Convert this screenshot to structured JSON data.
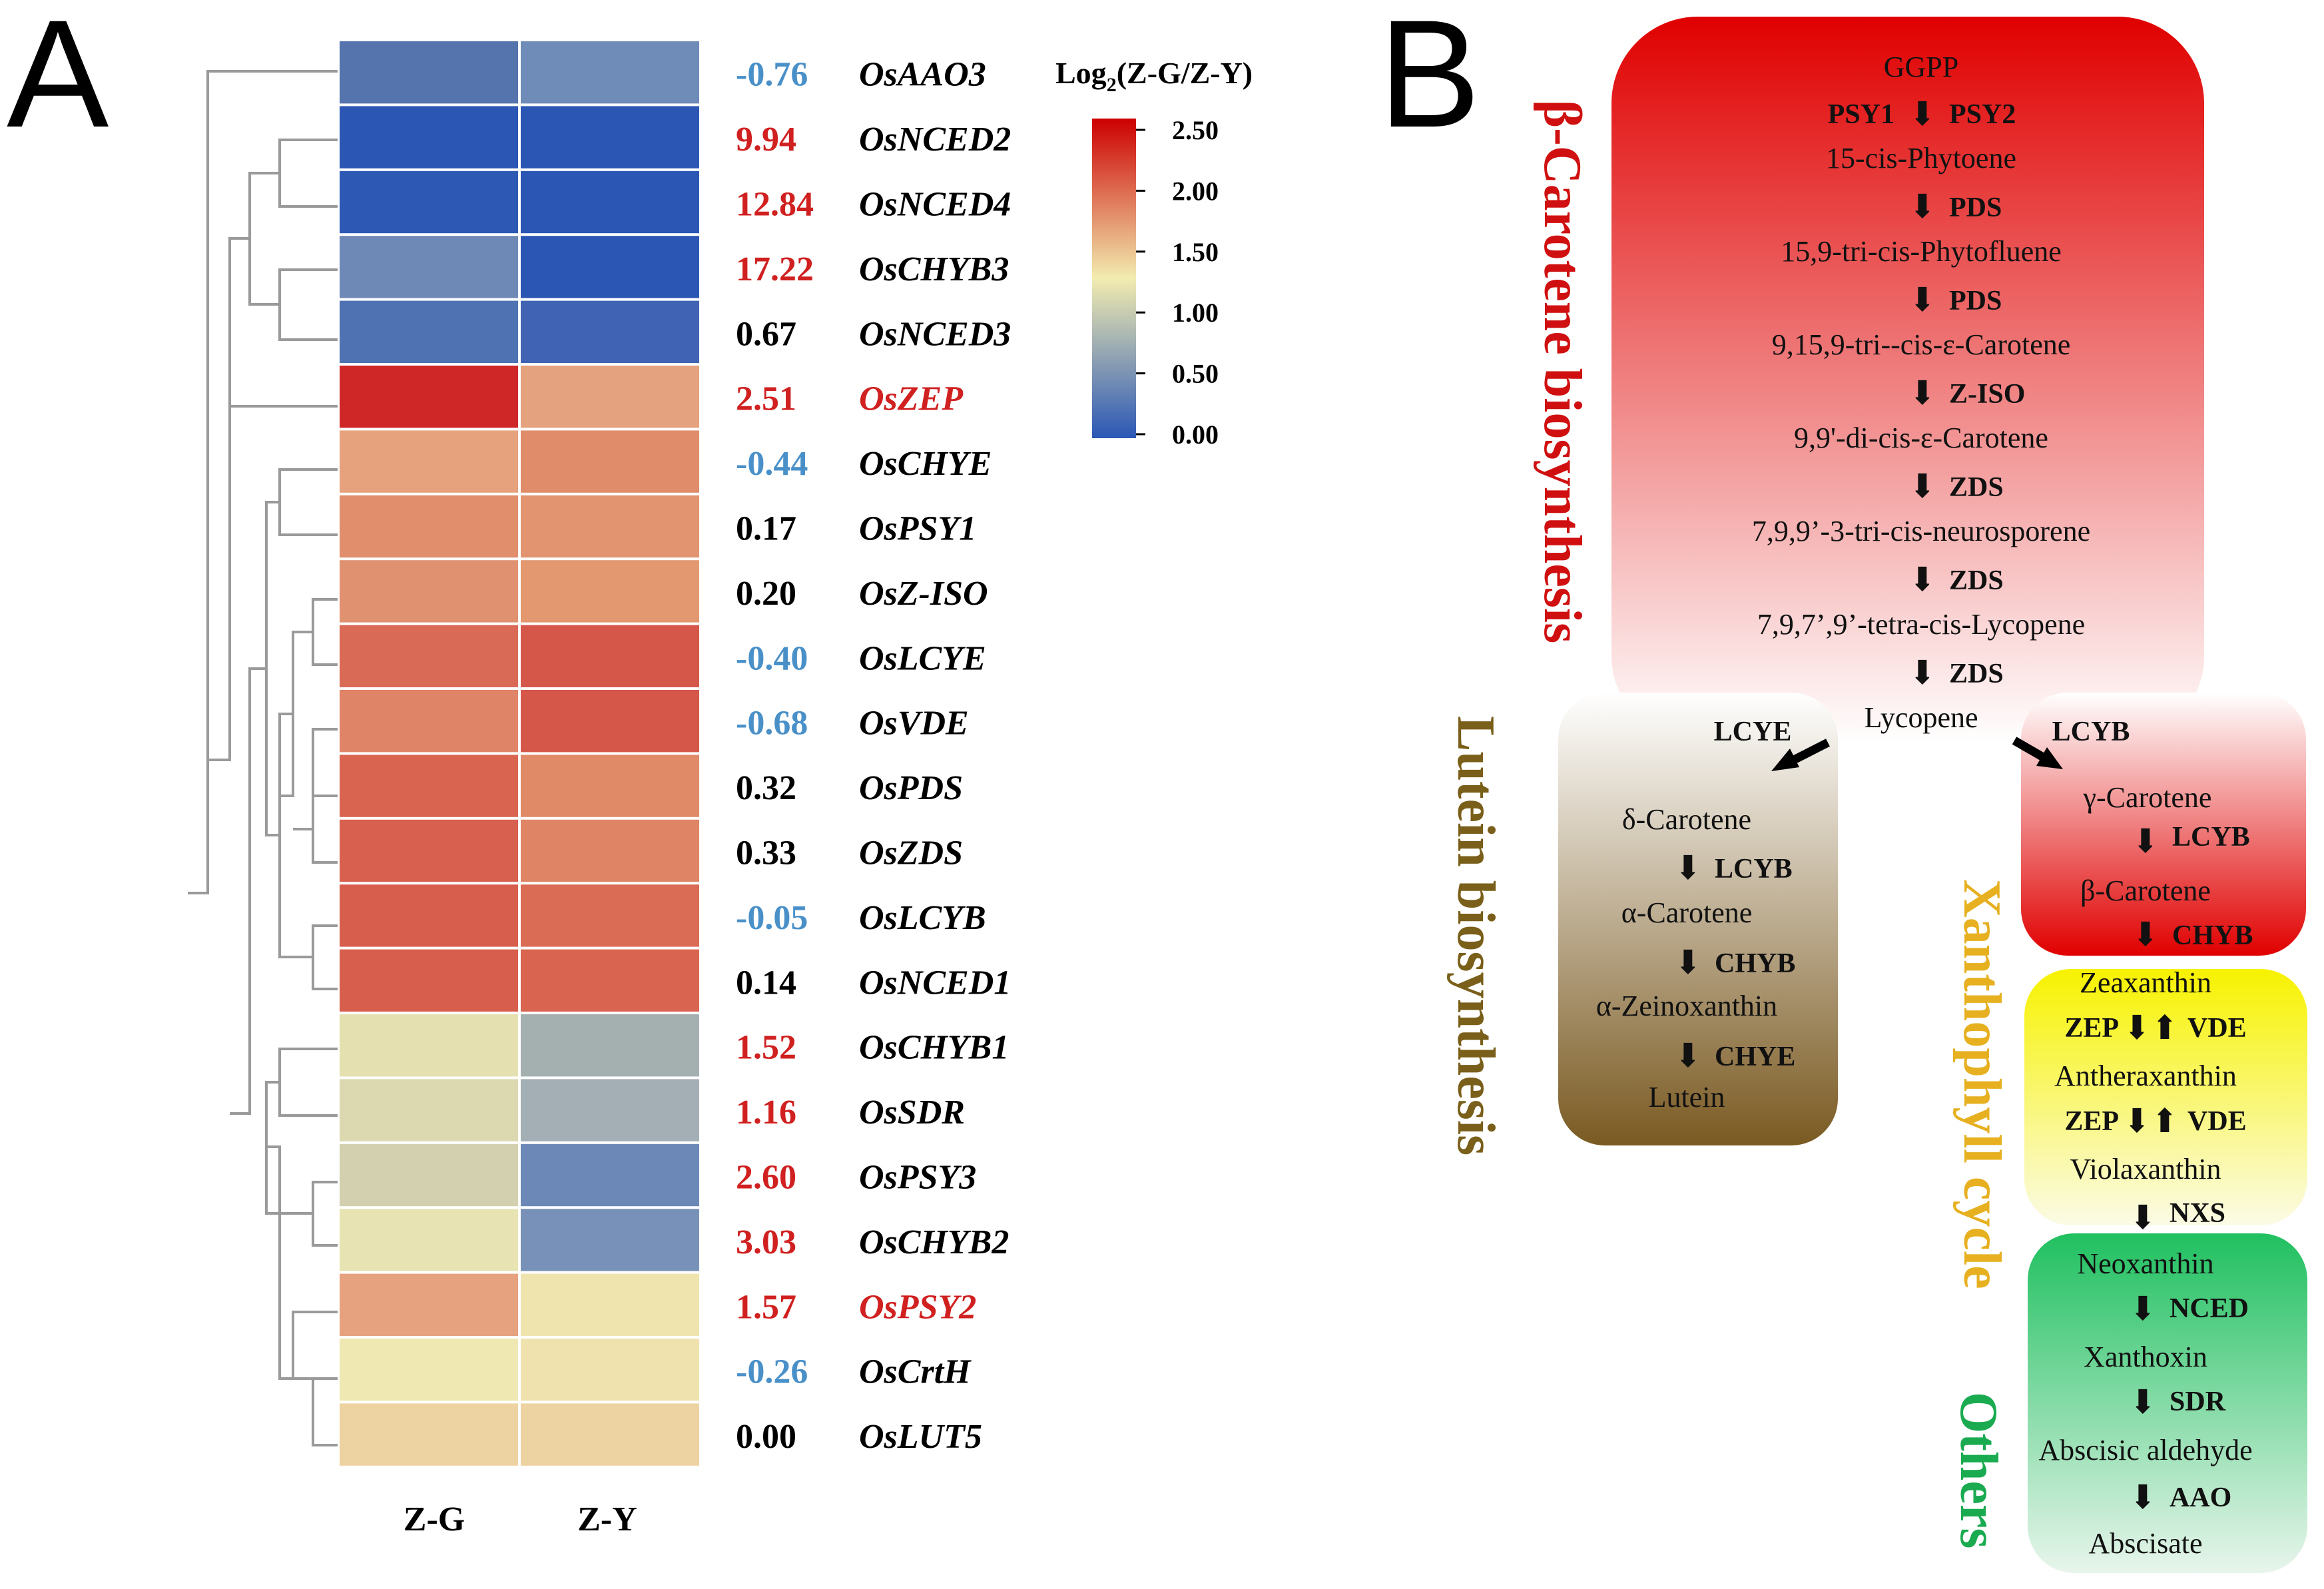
{
  "panel_a": {
    "label": "A",
    "legend": {
      "title_prefix": "Log",
      "title_sub": "2",
      "title_suffix": "(Z-G/Z-Y)",
      "ticks": [
        "2.50",
        "2.00",
        "1.50",
        "1.00",
        "0.50",
        "0.00"
      ],
      "color_low": "#2b57b5",
      "color_mid": "#f2ecb0",
      "color_high": "#cc0000"
    },
    "columns": [
      "Z-G",
      "Z-Y"
    ],
    "rows": [
      {
        "fc": "-0.76",
        "gene": "OsAAO3",
        "fc_color": "#4a90c8",
        "gene_color": "#000",
        "zg": "#5574ae",
        "zy": "#6f8bb8"
      },
      {
        "fc": "9.94",
        "gene": "OsNCED2",
        "fc_color": "#d02020",
        "gene_color": "#000",
        "zg": "#2b56b4",
        "zy": "#2b56b4"
      },
      {
        "fc": "12.84",
        "gene": "OsNCED4",
        "fc_color": "#d02020",
        "gene_color": "#000",
        "zg": "#2d59b5",
        "zy": "#2b56b4"
      },
      {
        "fc": "17.22",
        "gene": "OsCHYB3",
        "fc_color": "#d02020",
        "gene_color": "#000",
        "zg": "#6f89b7",
        "zy": "#2b56b4"
      },
      {
        "fc": "0.67",
        "gene": "OsNCED3",
        "fc_color": "#000",
        "gene_color": "#000",
        "zg": "#4f72b2",
        "zy": "#4163b3"
      },
      {
        "fc": "2.51",
        "gene": "OsZEP",
        "fc_color": "#d02020",
        "gene_color": "#d02020",
        "zg": "#cf2727",
        "zy": "#e5a27e"
      },
      {
        "fc": "-0.44",
        "gene": "OsCHYE",
        "fc_color": "#4a90c8",
        "gene_color": "#000",
        "zg": "#e6a27d",
        "zy": "#e08c6a"
      },
      {
        "fc": "0.17",
        "gene": "OsPSY1",
        "fc_color": "#000",
        "gene_color": "#000",
        "zg": "#e08e6b",
        "zy": "#e29470"
      },
      {
        "fc": "0.20",
        "gene": "OsZ-ISO",
        "fc_color": "#000",
        "gene_color": "#000",
        "zg": "#e09170",
        "zy": "#e3986f"
      },
      {
        "fc": "-0.40",
        "gene": "OsLCYE",
        "fc_color": "#4a90c8",
        "gene_color": "#000",
        "zg": "#d96a55",
        "zy": "#d5574a"
      },
      {
        "fc": "-0.68",
        "gene": "OsVDE",
        "fc_color": "#4a90c8",
        "gene_color": "#000",
        "zg": "#df8466",
        "zy": "#d5574a"
      },
      {
        "fc": "0.32",
        "gene": "OsPDS",
        "fc_color": "#000",
        "gene_color": "#000",
        "zg": "#d9644f",
        "zy": "#e08a67"
      },
      {
        "fc": "0.33",
        "gene": "OsZDS",
        "fc_color": "#000",
        "gene_color": "#000",
        "zg": "#d8604e",
        "zy": "#df8465"
      },
      {
        "fc": "-0.05",
        "gene": "OsLCYB",
        "fc_color": "#4a90c8",
        "gene_color": "#000",
        "zg": "#d75d4d",
        "zy": "#da6b55"
      },
      {
        "fc": "0.14",
        "gene": "OsNCED1",
        "fc_color": "#000",
        "gene_color": "#000",
        "zg": "#d75e4c",
        "zy": "#d96550"
      },
      {
        "fc": "1.52",
        "gene": "OsCHYB1",
        "fc_color": "#d02020",
        "gene_color": "#000",
        "zg": "#e5e0b0",
        "zy": "#a4afb0"
      },
      {
        "fc": "1.16",
        "gene": "OsSDR",
        "fc_color": "#d02020",
        "gene_color": "#000",
        "zg": "#dcd8b0",
        "zy": "#a3afb4"
      },
      {
        "fc": "2.60",
        "gene": "OsPSY3",
        "fc_color": "#d02020",
        "gene_color": "#000",
        "zg": "#d3d0b0",
        "zy": "#6b88b7"
      },
      {
        "fc": "3.03",
        "gene": "OsCHYB2",
        "fc_color": "#d02020",
        "gene_color": "#000",
        "zg": "#e8e3b2",
        "zy": "#7891b8"
      },
      {
        "fc": "1.57",
        "gene": "OsPSY2",
        "fc_color": "#d02020",
        "gene_color": "#d02020",
        "zg": "#e6a27e",
        "zy": "#efe4ad"
      },
      {
        "fc": "-0.26",
        "gene": "OsCrtH",
        "fc_color": "#4a90c8",
        "gene_color": "#000",
        "zg": "#f0e8b2",
        "zy": "#f0e2af"
      },
      {
        "fc": "0.00",
        "gene": "OsLUT5",
        "fc_color": "#000",
        "gene_color": "#000",
        "zg": "#edd2a2",
        "zy": "#edd2a2"
      }
    ]
  },
  "panel_b": {
    "label": "B",
    "labels": {
      "carotene": {
        "text": "β-Carotene biosynthesis",
        "color": "#d01010"
      },
      "lutein": {
        "text": "Lutein biosynthesis",
        "color": "#7a5f1a"
      },
      "xanthophyll": {
        "text": "Xanthophyll cycle",
        "color": "#e6b020"
      },
      "others": {
        "text": "Others",
        "color": "#1aaa50"
      }
    },
    "box_colors": {
      "red": "#e00000",
      "brown": "#7a5a22",
      "yellow": "#f7f200",
      "green": "#20c060"
    },
    "main_pathway": [
      {
        "compound": "GGPP",
        "compound_color": "#b00000"
      },
      {
        "enzyme_left": "PSY1",
        "enzyme": "PSY2",
        "compound": "15-cis-Phytoene"
      },
      {
        "enzyme": "PDS",
        "compound": "15,9-tri-cis-Phytofluene"
      },
      {
        "enzyme": "PDS",
        "compound": "9,15,9-tri--cis-ε-Carotene"
      },
      {
        "enzyme": "Z-ISO",
        "compound": "9,9'-di-cis-ε-Carotene"
      },
      {
        "enzyme": "ZDS",
        "compound": "7,9,9’-3-tri-cis-neurosporene"
      },
      {
        "enzyme": "ZDS",
        "compound": "7,9,7’,9’-tetra-cis-Lycopene"
      },
      {
        "enzyme": "ZDS",
        "compound": "Lycopene"
      }
    ],
    "branch_left_enzyme": "LCYE",
    "branch_right_enzyme": "LCYB",
    "lutein_pathway": [
      {
        "compound": "δ-Carotene"
      },
      {
        "enzyme": "LCYB",
        "compound": "α-Carotene"
      },
      {
        "enzyme": "CHYB",
        "compound": "α-Zeinoxanthin"
      },
      {
        "enzyme": "CHYE",
        "compound": "Lutein"
      }
    ],
    "beta_pathway": [
      {
        "compound": "γ-Carotene"
      },
      {
        "enzyme": "LCYB",
        "compound": "β-Carotene"
      },
      {
        "enzyme": "CHYB"
      }
    ],
    "xanthophyll_pathway": [
      {
        "compound": "Zeaxanthin"
      },
      {
        "enzyme_left": "ZEP",
        "enzyme": "VDE",
        "compound": "Antheraxanthin"
      },
      {
        "enzyme_left": "ZEP",
        "enzyme": "VDE",
        "compound": "Violaxanthin"
      },
      {
        "enzyme": "NXS"
      }
    ],
    "others_pathway": [
      {
        "compound": "Neoxanthin"
      },
      {
        "enzyme": "NCED",
        "compound": "Xanthoxin"
      },
      {
        "enzyme": "SDR",
        "compound": "Abscisic aldehyde"
      },
      {
        "enzyme": "AAO",
        "compound": "Abscisate"
      }
    ]
  }
}
